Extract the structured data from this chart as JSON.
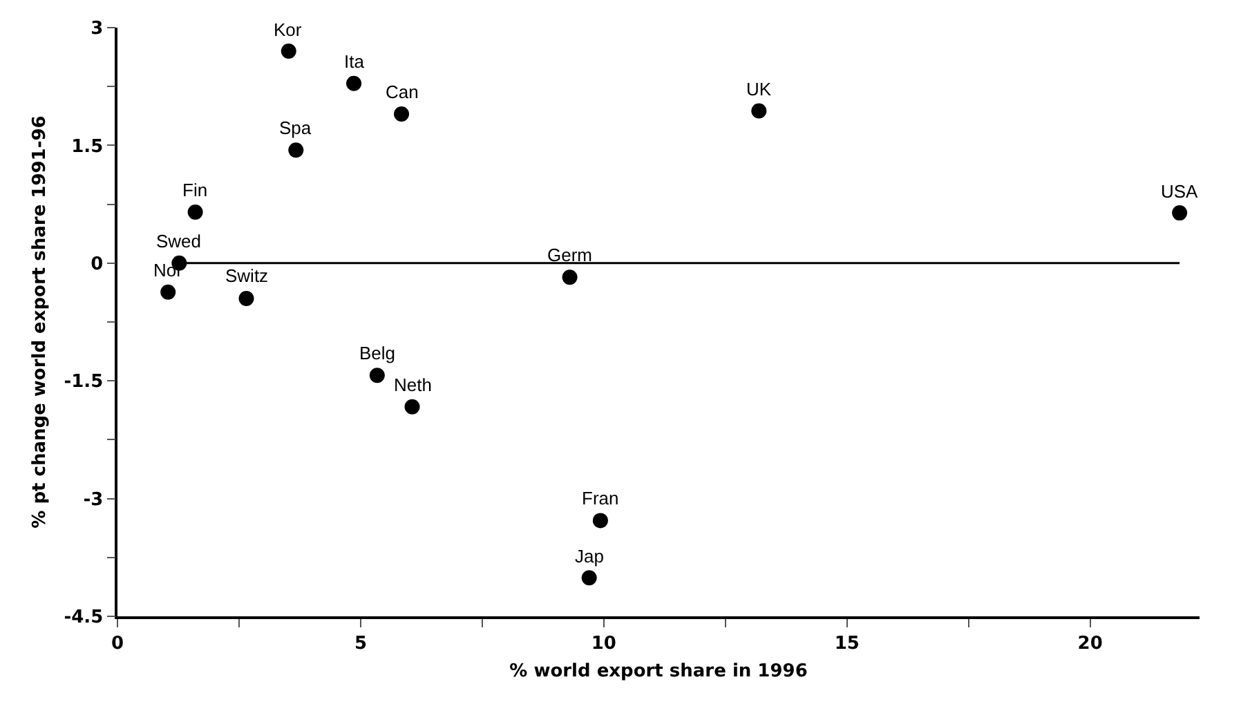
{
  "chart_data": {
    "type": "scatter",
    "xlabel": "% world export share in 1996",
    "ylabel": "% pt change world export share 1991-96",
    "xlim": [
      0,
      22.25
    ],
    "ylim": [
      -4.5,
      3
    ],
    "xticks": [
      0,
      {
        "value": 2.5,
        "label": null
      },
      5,
      {
        "value": 7.5,
        "label": null
      },
      10,
      {
        "value": 12.5,
        "label": null
      },
      15,
      {
        "value": 17.5,
        "label": null
      },
      20
    ],
    "yticks": [
      -4.5,
      {
        "value": -3.75,
        "label": null
      },
      -3,
      {
        "value": -2.25,
        "label": null
      },
      -1.5,
      {
        "value": -0.75,
        "label": null
      },
      0,
      {
        "value": 0.75,
        "label": null
      },
      1.5,
      {
        "value": 2.25,
        "label": null
      },
      3
    ],
    "grid": false,
    "marker": "circle",
    "series": [
      {
        "type": "line",
        "marker": "none",
        "color": "#000000",
        "x": [
          1.27,
          21.84
        ],
        "values": [
          0,
          0
        ]
      },
      {
        "color": "#000000",
        "x": [
          3.52,
          4.86,
          5.84,
          3.67,
          1.6,
          1.27,
          1.04,
          2.65,
          5.34,
          6.06,
          9.3,
          9.93,
          9.7,
          13.19,
          21.84
        ],
        "values": [
          2.7,
          2.29,
          1.9,
          1.44,
          0.65,
          0,
          -0.37,
          -0.45,
          -1.43,
          -1.83,
          -0.18,
          -3.28,
          -4.01,
          1.94,
          0.64
        ]
      }
    ],
    "annotations": [
      {
        "text": "Kor",
        "x": 3.52,
        "y": 2.7
      },
      {
        "text": "Ita",
        "x": 4.86,
        "y": 2.29
      },
      {
        "text": "Can",
        "x": 5.84,
        "y": 1.9
      },
      {
        "text": "Spa",
        "x": 3.67,
        "y": 1.44
      },
      {
        "text": "Fin",
        "x": 1.6,
        "y": 0.65
      },
      {
        "text": "Swed",
        "x": 1.27,
        "y": 0
      },
      {
        "text": "Nor",
        "x": 1.04,
        "y": -0.37
      },
      {
        "text": "Switz",
        "x": 2.65,
        "y": -0.45
      },
      {
        "text": "Belg",
        "x": 5.34,
        "y": -1.43
      },
      {
        "text": "Neth",
        "x": 6.06,
        "y": -1.83
      },
      {
        "text": "Germ",
        "x": 9.3,
        "y": -0.18
      },
      {
        "text": "Fran",
        "x": 9.93,
        "y": -3.28
      },
      {
        "text": "Jap",
        "x": 9.7,
        "y": -4.01
      },
      {
        "text": "UK",
        "x": 13.19,
        "y": 1.94
      },
      {
        "text": "USA",
        "x": 21.84,
        "y": 0.64
      }
    ]
  }
}
